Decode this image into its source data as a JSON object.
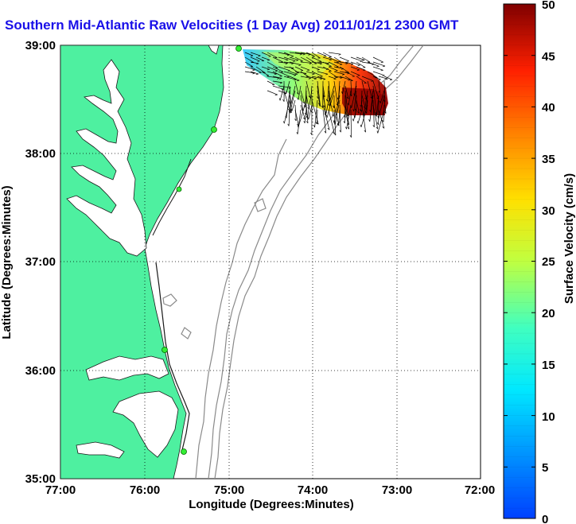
{
  "title": "Southern Mid-Atlantic Raw Velocities (1 Day Avg) 2011/01/21 2300 GMT",
  "x_axis": {
    "label": "Longitude (Degrees:Minutes)",
    "ticks": [
      "77:00",
      "76:00",
      "75:00",
      "74:00",
      "73:00",
      "72:00"
    ]
  },
  "y_axis": {
    "label": "Latitude (Degrees:Minutes)",
    "ticks": [
      "39:00",
      "38:00",
      "37:00",
      "36:00",
      "35:00"
    ]
  },
  "colorbar": {
    "label": "Surface Velocity (cm/s)",
    "ticks": [
      "50",
      "45",
      "40",
      "35",
      "30",
      "25",
      "20",
      "15",
      "10",
      "5",
      "0"
    ],
    "range": [
      0,
      50
    ],
    "colormap": "jet"
  },
  "extent": {
    "lon": [
      -77,
      -72
    ],
    "lat": [
      35,
      39
    ]
  },
  "colors": {
    "land": "#4ef0a0",
    "water": "#ffffff",
    "bathymetry": "#8a8a8a",
    "title": "#1a10e8",
    "station": "#33ee33"
  },
  "grid": "dotted"
}
